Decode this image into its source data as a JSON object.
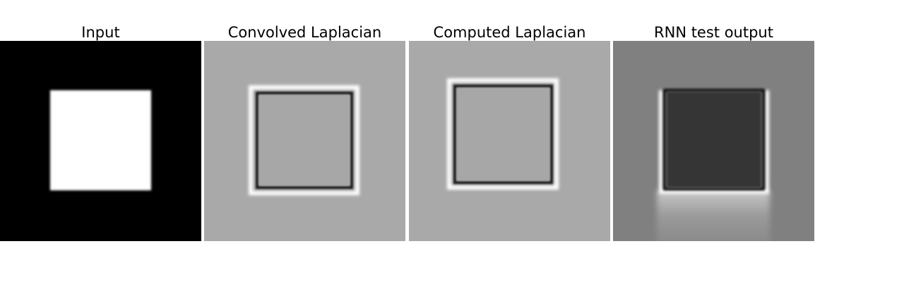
{
  "panels": [
    {
      "title": "Input"
    },
    {
      "title": "Convolved Laplacian"
    },
    {
      "title": "Computed Laplacian"
    },
    {
      "title": "RNN test output"
    }
  ],
  "colors": {
    "background": "#ffffff",
    "black": "#000000",
    "white": "#ffffff",
    "laplacian_gray": "#a9a9a9",
    "rnn_gray": "#808080",
    "rnn_dark": "#363636"
  }
}
